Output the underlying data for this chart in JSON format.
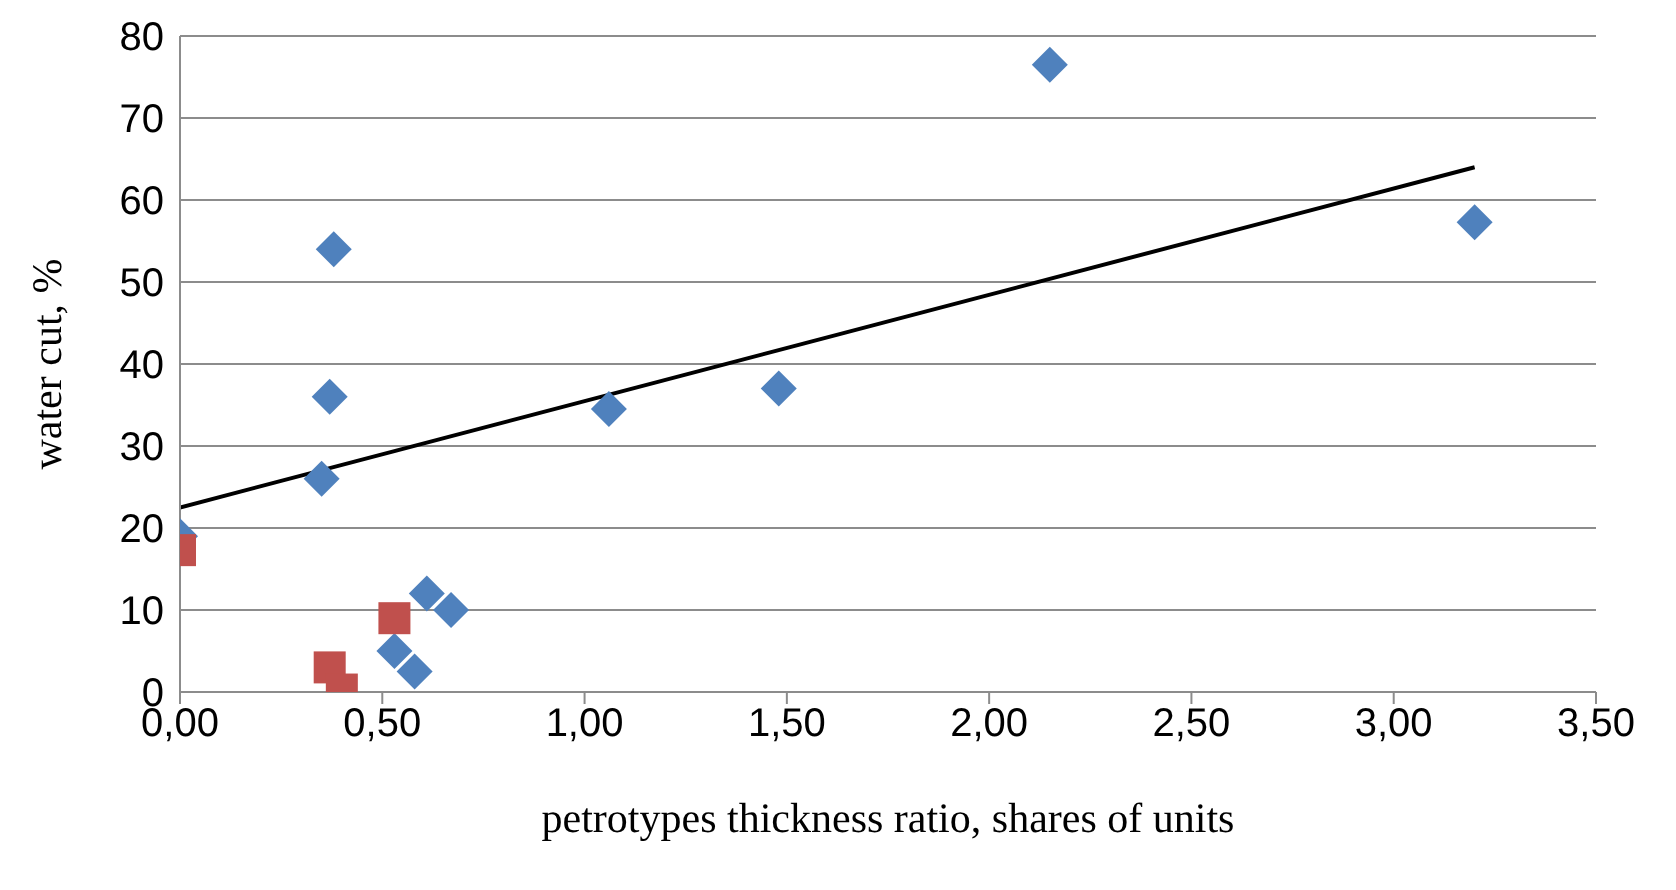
{
  "chart_data": {
    "type": "scatter",
    "xlabel": "petrotypes thickness ratio, shares of units",
    "ylabel": "water cut, %",
    "xlim": [
      0,
      3.5
    ],
    "xticks": [
      {
        "value": 0,
        "label": "0,00"
      },
      {
        "value": 0.5,
        "label": "0,50"
      },
      {
        "value": 1,
        "label": "1,00"
      },
      {
        "value": 1.5,
        "label": "1,50"
      },
      {
        "value": 2,
        "label": "2,00"
      },
      {
        "value": 2.5,
        "label": "2,50"
      },
      {
        "value": 3,
        "label": "3,00"
      },
      {
        "value": 3.5,
        "label": "3,50"
      }
    ],
    "ylim": [
      0,
      80
    ],
    "yticks": [
      0,
      10,
      20,
      30,
      40,
      50,
      60,
      70,
      80
    ],
    "grid": "y",
    "legend": false,
    "series": [
      {
        "marker": "diamond",
        "color": "#4f81bd",
        "x": [
          0,
          0.35,
          0.37,
          0.38,
          0.53,
          0.58,
          0.61,
          0.67,
          1.06,
          1.48,
          2.15,
          3.2
        ],
        "values": [
          19,
          26,
          36,
          54,
          5,
          2.5,
          12,
          10,
          34.5,
          37,
          76.5,
          57.3
        ]
      },
      {
        "marker": "square",
        "color": "#c0504d",
        "x": [
          0,
          0.37,
          0.4,
          0.53
        ],
        "values": [
          17.3,
          3,
          0.3,
          9
        ]
      },
      {
        "type": "line",
        "marker": "none",
        "color": "#000000",
        "x": [
          0,
          3.2
        ],
        "values": [
          22.5,
          64
        ]
      }
    ]
  }
}
